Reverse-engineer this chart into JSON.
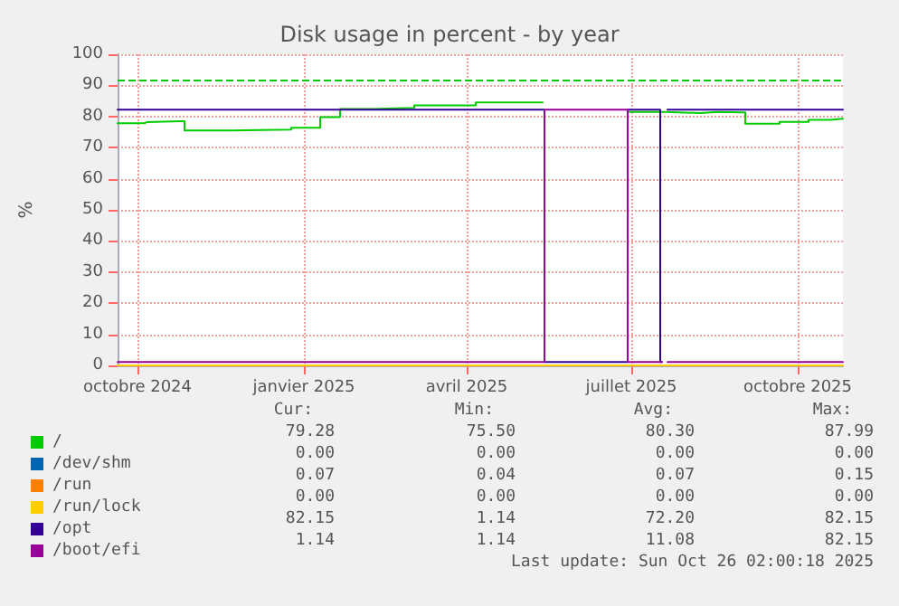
{
  "chart_data": {
    "type": "step",
    "title": "Disk usage in percent - by year",
    "ylabel": "%",
    "xlim": [
      "2024-09-20",
      "2025-10-26"
    ],
    "xticks": [
      {
        "value": "2024-10-01",
        "label": "octobre 2024"
      },
      {
        "value": "2025-01-01",
        "label": "janvier 2025"
      },
      {
        "value": "2025-04-01",
        "label": "avril 2025"
      },
      {
        "value": "2025-07-01",
        "label": "juillet 2025"
      },
      {
        "value": "2025-10-01",
        "label": "octobre 2025"
      }
    ],
    "ylim": [
      0,
      100
    ],
    "yticks": [
      0,
      10,
      20,
      30,
      40,
      50,
      60,
      70,
      80,
      90,
      100
    ],
    "grid": true,
    "legend": "bottom",
    "marker": "none",
    "line_style": "solid",
    "ref_lines": [
      {
        "axis": "y",
        "value": 92,
        "color": "#00cc00",
        "line_style": "dashed"
      }
    ],
    "series": [
      {
        "name": "/",
        "color": "#00cc00",
        "x": [
          "2024-09-20",
          "2024-10-05",
          "2024-10-06",
          "2024-10-25",
          "2024-10-27",
          "2024-11-22",
          "2024-12-25",
          "2025-01-10",
          "2025-01-21",
          "2025-02-08",
          "2025-03-03",
          "2025-04-06",
          "2025-05-12",
          "2025-05-13",
          "2025-06-29",
          "2025-07-16",
          "2025-07-20",
          "2025-08-08",
          "2025-08-18",
          "2025-08-31",
          "2025-09-02",
          "2025-09-21",
          "2025-10-07",
          "2025-10-19",
          "2025-10-26"
        ],
        "values": [
          77.8,
          78.2,
          78.5,
          78.5,
          75.5,
          75.8,
          76.4,
          79.8,
          82.4,
          82.8,
          83.6,
          84.5,
          84.5,
          null,
          81.5,
          81.5,
          81.1,
          81.5,
          81.3,
          81.3,
          77.7,
          78.3,
          78.9,
          79.3,
          79.3
        ]
      },
      {
        "name": "/dev/shm",
        "color": "#0066b3"
      },
      {
        "name": "/run",
        "color": "#ff8000"
      },
      {
        "name": "/run/lock",
        "color": "#ffcc00",
        "x": [
          "2024-09-20",
          "2025-10-26"
        ],
        "values": [
          0,
          0
        ]
      },
      {
        "name": "/opt",
        "color": "#330099",
        "x": [
          "2024-09-20",
          "2025-05-13",
          "2025-05-14",
          "2025-06-28",
          "2025-06-29",
          "2025-07-16",
          "2025-07-17",
          "2025-07-18",
          "2025-07-21",
          "2025-10-26"
        ],
        "values": [
          82.2,
          82.2,
          1.1,
          1.1,
          82.2,
          82.2,
          1.1,
          null,
          82.2,
          82.2
        ]
      },
      {
        "name": "/boot/efi",
        "color": "#990099",
        "x": [
          "2024-09-20",
          "2025-05-13",
          "2025-05-14",
          "2025-06-28",
          "2025-06-29",
          "2025-07-17",
          "2025-07-18",
          "2025-07-21",
          "2025-10-26"
        ],
        "values": [
          1.1,
          1.1,
          82.2,
          82.2,
          1.1,
          1.1,
          null,
          1.1,
          1.1
        ]
      }
    ],
    "annotations": [
      "Cur:",
      "Min:",
      "Avg:",
      "Max:",
      "79.28",
      "75.50",
      "80.30",
      "87.99",
      "0.00",
      "0.00",
      "0.00",
      "0.00",
      "0.07",
      "0.04",
      "0.07",
      "0.15",
      "0.00",
      "0.00",
      "0.00",
      "0.00",
      "82.15",
      "1.14",
      "72.20",
      "82.15",
      "1.14",
      "1.14",
      "11.08",
      "82.15",
      "Last update: Sun Oct 26 02:00:18 2025"
    ]
  }
}
